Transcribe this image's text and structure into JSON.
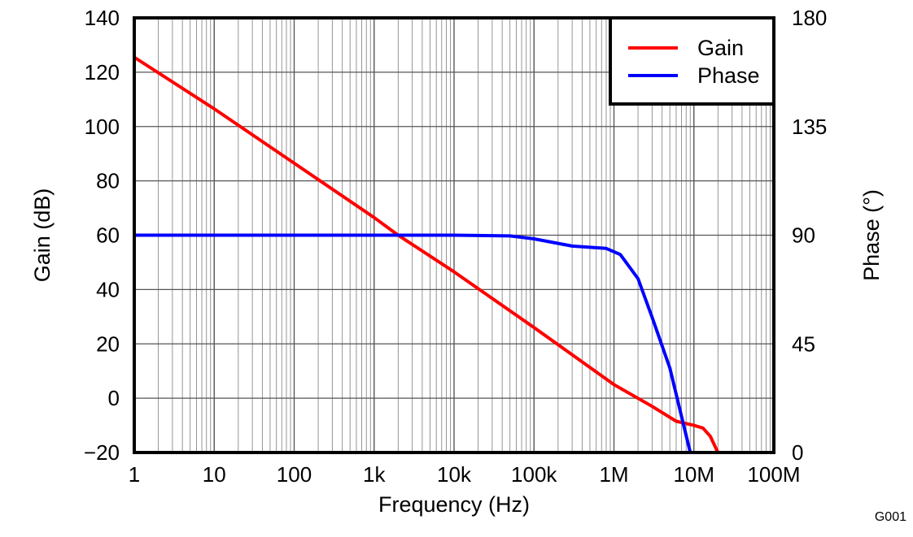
{
  "chart_data": {
    "type": "line",
    "x_scale": "log",
    "xlabel": "Frequency (Hz)",
    "xlim": [
      1,
      100000000
    ],
    "x_ticks": [
      {
        "value": 1,
        "label": "1"
      },
      {
        "value": 10,
        "label": "10"
      },
      {
        "value": 100,
        "label": "100"
      },
      {
        "value": 1000,
        "label": "1k"
      },
      {
        "value": 10000,
        "label": "10k"
      },
      {
        "value": 100000,
        "label": "100k"
      },
      {
        "value": 1000000,
        "label": "1M"
      },
      {
        "value": 10000000,
        "label": "10M"
      },
      {
        "value": 100000000,
        "label": "100M"
      }
    ],
    "ylabel": "Gain (dB)",
    "ylim": [
      -20,
      140
    ],
    "y_ticks": [
      {
        "value": 140,
        "label": "140"
      },
      {
        "value": 120,
        "label": "120"
      },
      {
        "value": 100,
        "label": "100"
      },
      {
        "value": 80,
        "label": "80"
      },
      {
        "value": 60,
        "label": "60"
      },
      {
        "value": 40,
        "label": "40"
      },
      {
        "value": 20,
        "label": "20"
      },
      {
        "value": 0,
        "label": "0"
      },
      {
        "value": -20,
        "label": "−20"
      }
    ],
    "y2label": "Phase (°)",
    "y2lim": [
      0,
      180
    ],
    "y2_ticks": [
      {
        "value": 180,
        "label": "180"
      },
      {
        "value": 135,
        "label": "135"
      },
      {
        "value": 90,
        "label": "90"
      },
      {
        "value": 45,
        "label": "45"
      },
      {
        "value": 0,
        "label": "0"
      }
    ],
    "grid": true,
    "legend_position": "top-right",
    "series": [
      {
        "name": "Gain",
        "axis": "left",
        "color": "#ff0000",
        "points": [
          [
            1,
            125.5
          ],
          [
            10,
            106.5
          ],
          [
            100,
            86.5
          ],
          [
            1000,
            66.5
          ],
          [
            2000,
            60
          ],
          [
            10000,
            46.5
          ],
          [
            100000,
            26
          ],
          [
            300000,
            16
          ],
          [
            1000000,
            5
          ],
          [
            3000000,
            -3
          ],
          [
            6000000,
            -8.5
          ],
          [
            10000000,
            -10
          ],
          [
            13000000,
            -11
          ],
          [
            16000000,
            -14
          ],
          [
            20000000,
            -20
          ]
        ]
      },
      {
        "name": "Phase",
        "axis": "right",
        "color": "#0000ff",
        "points": [
          [
            1,
            90
          ],
          [
            10000,
            90
          ],
          [
            50000,
            89.7
          ],
          [
            100000,
            88.5
          ],
          [
            300000,
            85.5
          ],
          [
            800000,
            84.5
          ],
          [
            1200000,
            82
          ],
          [
            2000000,
            72
          ],
          [
            3000000,
            56
          ],
          [
            5000000,
            35
          ],
          [
            7000000,
            15
          ],
          [
            9000000,
            0
          ]
        ]
      }
    ]
  },
  "figure_id": "G001"
}
